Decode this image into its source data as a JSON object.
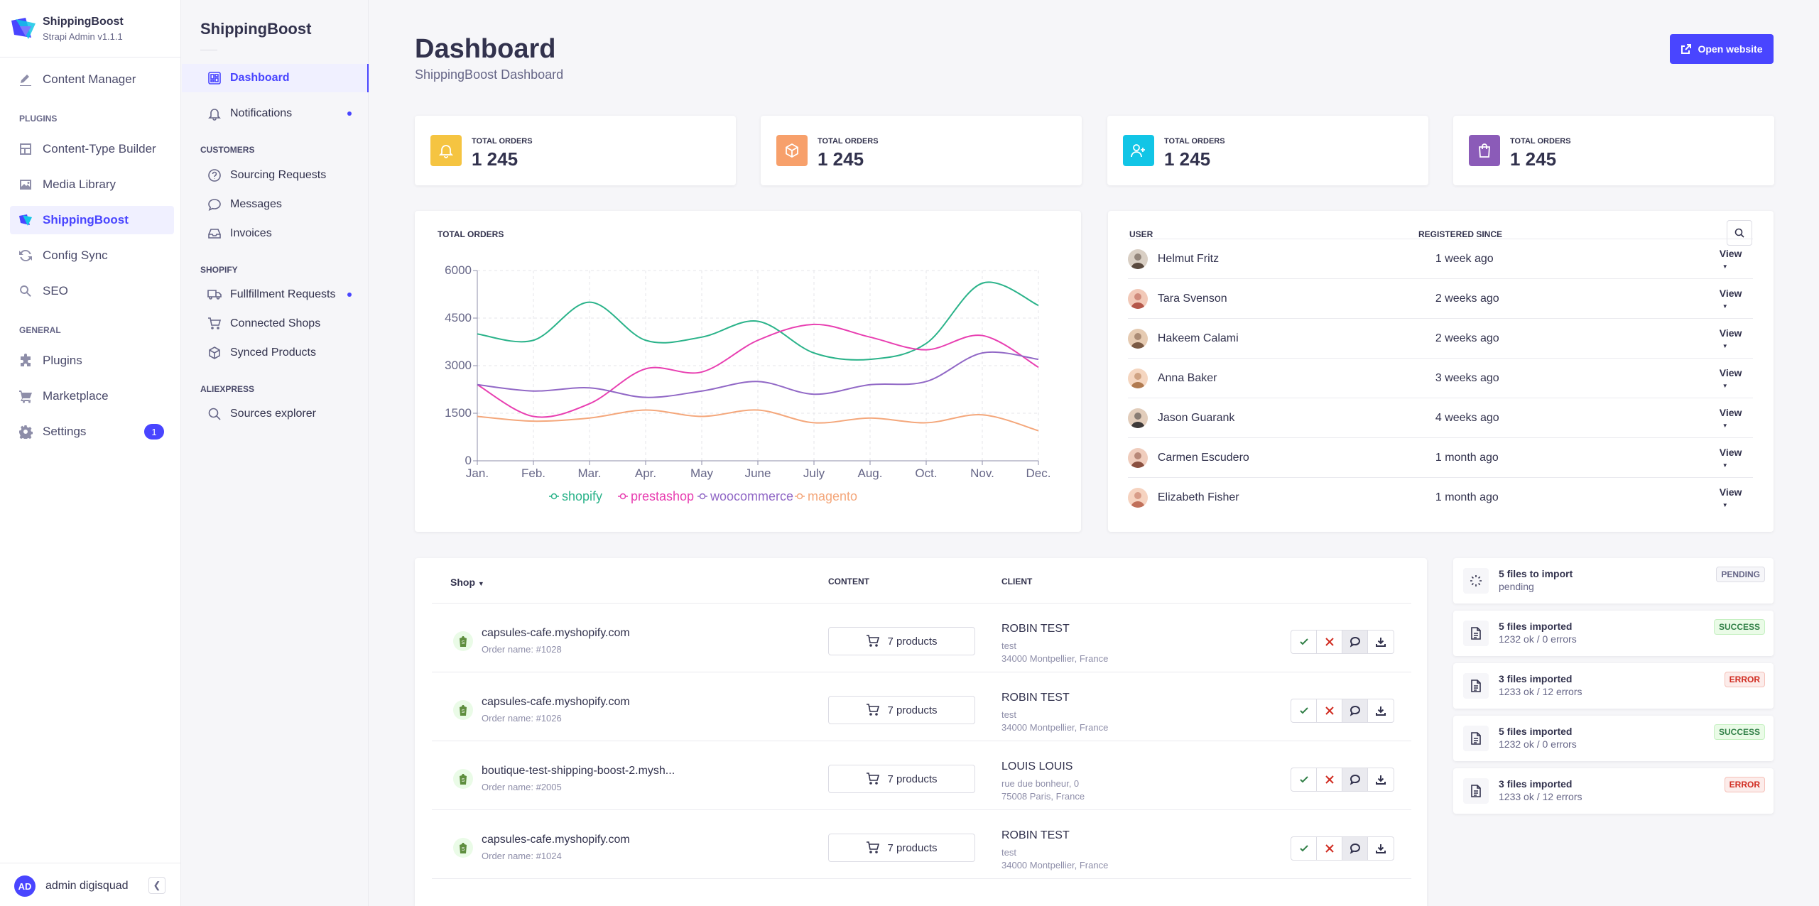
{
  "app": {
    "name": "ShippingBoost",
    "version": "Strapi Admin v1.1.1"
  },
  "leftnav": {
    "content_manager": "Content Manager",
    "plugins_heading": "PLUGINS",
    "plugins": [
      "Content-Type Builder",
      "Media Library",
      "ShippingBoost",
      "Config Sync",
      "SEO"
    ],
    "general_heading": "GENERAL",
    "general": [
      "Plugins",
      "Marketplace",
      "Settings"
    ],
    "settings_badge": "1",
    "user_initials": "AD",
    "user_name": "admin digisquad"
  },
  "subnav": {
    "title": "ShippingBoost",
    "dashboard": "Dashboard",
    "notifications": "Notifications",
    "customers_heading": "CUSTOMERS",
    "customers": [
      "Sourcing Requests",
      "Messages",
      "Invoices"
    ],
    "shopify_heading": "SHOPIFY",
    "shopify": [
      "Fullfillment Requests",
      "Connected Shops",
      "Synced Products"
    ],
    "aliexpress_heading": "ALIEXPRESS",
    "aliexpress": [
      "Sources explorer"
    ]
  },
  "header": {
    "title": "Dashboard",
    "subtitle": "ShippingBoost Dashboard",
    "open_website": "Open website"
  },
  "stats": [
    {
      "label": "TOTAL ORDERS",
      "value": "1 245",
      "color": "#f5c441",
      "icon": "bell-icon"
    },
    {
      "label": "TOTAL ORDERS",
      "value": "1 245",
      "color": "#f7a06b",
      "icon": "box-icon"
    },
    {
      "label": "TOTAL ORDERS",
      "value": "1 245",
      "color": "#12c5e6",
      "icon": "user-plus-icon"
    },
    {
      "label": "TOTAL ORDERS",
      "value": "1 245",
      "color": "#8b5bb8",
      "icon": "bag-icon"
    }
  ],
  "chart_data": {
    "type": "line",
    "title": "TOTAL ORDERS",
    "categories": [
      "Jan.",
      "Feb.",
      "Mar.",
      "Apr.",
      "May",
      "June",
      "July",
      "Aug.",
      "Oct.",
      "Nov.",
      "Dec."
    ],
    "ylim": [
      0,
      6000
    ],
    "yticks": [
      "0",
      "1500",
      "3000",
      "4500",
      "6000"
    ],
    "legend": "bottom",
    "grid": true,
    "series": [
      {
        "name": "shopify",
        "color": "#2bb38a",
        "values": [
          4000,
          3800,
          5000,
          3800,
          3900,
          4400,
          3400,
          3200,
          3700,
          5600,
          4900
        ]
      },
      {
        "name": "prestashop",
        "color": "#e83fb1",
        "values": [
          2400,
          1400,
          1800,
          2900,
          2800,
          3800,
          4300,
          3900,
          3500,
          3950,
          2950
        ]
      },
      {
        "name": "woocommerce",
        "color": "#9168c6",
        "values": [
          2400,
          2200,
          2300,
          2000,
          2200,
          2500,
          2100,
          2400,
          2500,
          3400,
          3200
        ]
      },
      {
        "name": "magento",
        "color": "#f4a77b",
        "values": [
          1400,
          1250,
          1350,
          1600,
          1400,
          1600,
          1200,
          1350,
          1200,
          1450,
          950
        ]
      }
    ]
  },
  "users": {
    "col_user": "USER",
    "col_since": "REGISTERED SINCE",
    "view_label": "View",
    "rows": [
      {
        "name": "Helmut Fritz",
        "since": "1 week ago"
      },
      {
        "name": "Tara Svenson",
        "since": "2 weeks ago"
      },
      {
        "name": "Hakeem Calami",
        "since": "2 weeks ago"
      },
      {
        "name": "Anna Baker",
        "since": "3 weeks ago"
      },
      {
        "name": "Jason Guarank",
        "since": "4 weeks ago"
      },
      {
        "name": "Carmen Escudero",
        "since": "1 month ago"
      },
      {
        "name": "Elizabeth Fisher",
        "since": "1 month ago"
      }
    ]
  },
  "orders": {
    "col_shop": "Shop",
    "col_content": "CONTENT",
    "col_client": "CLIENT",
    "rows": [
      {
        "shop": "capsules-cafe.myshopify.com",
        "order": "Order name: #1028",
        "products": "7 products",
        "client": "ROBIN TEST",
        "line2": "test",
        "line3": "34000 Montpellier, France"
      },
      {
        "shop": "capsules-cafe.myshopify.com",
        "order": "Order name: #1026",
        "products": "7 products",
        "client": "ROBIN TEST",
        "line2": "test",
        "line3": "34000 Montpellier, France"
      },
      {
        "shop": "boutique-test-shipping-boost-2.mysh...",
        "order": "Order name: #2005",
        "products": "7 products",
        "client": "LOUIS LOUIS",
        "line2": "rue due bonheur, 0",
        "line3": "75008 Paris, France"
      },
      {
        "shop": "capsules-cafe.myshopify.com",
        "order": "Order name: #1024",
        "products": "7 products",
        "client": "ROBIN TEST",
        "line2": "test",
        "line3": "34000 Montpellier, France"
      }
    ]
  },
  "imports": [
    {
      "title": "5 files to import",
      "sub": "pending",
      "status": "PENDING",
      "kind": "pending"
    },
    {
      "title": "5 files imported",
      "sub": "1232 ok / 0 errors",
      "status": "SUCCESS",
      "kind": "success"
    },
    {
      "title": "3 files imported",
      "sub": "1233 ok / 12 errors",
      "status": "ERROR",
      "kind": "error"
    },
    {
      "title": "5 files imported",
      "sub": "1232 ok / 0 errors",
      "status": "SUCCESS",
      "kind": "success"
    },
    {
      "title": "3 files imported",
      "sub": "1233 ok / 12 errors",
      "status": "ERROR",
      "kind": "error"
    }
  ]
}
